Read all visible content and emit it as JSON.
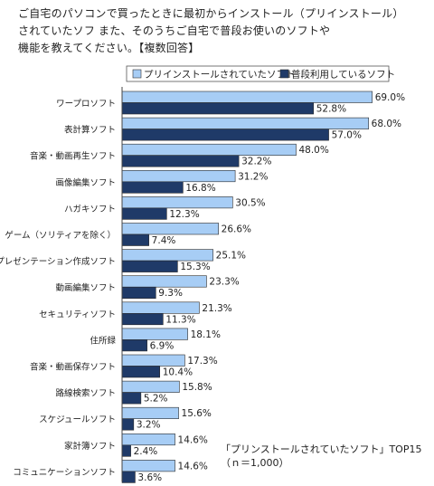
{
  "question": {
    "line1": "ご自宅のパソコンで買ったときに最初からインストール（プリインストール）",
    "line2": "されていたソフ また、そのうちご自宅で普段お使いのソフトや",
    "line3": "機能を教えてください。【複数回答】"
  },
  "note": {
    "line1": "「プリンストールされていたソフト」TOP15",
    "line2": "（ｎ＝1,000）"
  },
  "colors": {
    "light": "#a7cdf5",
    "dark": "#1f3a68",
    "border": "#555555"
  },
  "chart_data": {
    "type": "bar",
    "orientation": "horizontal",
    "categories": [
      "ワープロソフト",
      "表計算ソフト",
      "音楽・動画再生ソフト",
      "画像編集ソフト",
      "ハガキソフト",
      "ゲーム（ソリティアを除く）",
      "プレゼンテーション作成ソフト",
      "動画編集ソフト",
      "セキュリティソフト",
      "住所録",
      "音楽・動画保存ソフト",
      "路線検索ソフト",
      "スケジュールソフト",
      "家計簿ソフト",
      "コミュニケーションソフト"
    ],
    "series": [
      {
        "name": "プリインストールされていたソフト",
        "values": [
          69.0,
          68.0,
          48.0,
          31.2,
          30.5,
          26.6,
          25.1,
          23.3,
          21.3,
          18.1,
          17.3,
          15.8,
          15.6,
          14.6,
          14.6
        ]
      },
      {
        "name": "普段利用しているソフト",
        "values": [
          52.8,
          57.0,
          32.2,
          16.8,
          12.3,
          7.4,
          15.3,
          9.3,
          11.3,
          6.9,
          10.4,
          5.2,
          3.2,
          2.4,
          3.6
        ]
      }
    ],
    "value_format": "%",
    "xlim": [
      0,
      100
    ],
    "grid": false,
    "legend": "top"
  }
}
